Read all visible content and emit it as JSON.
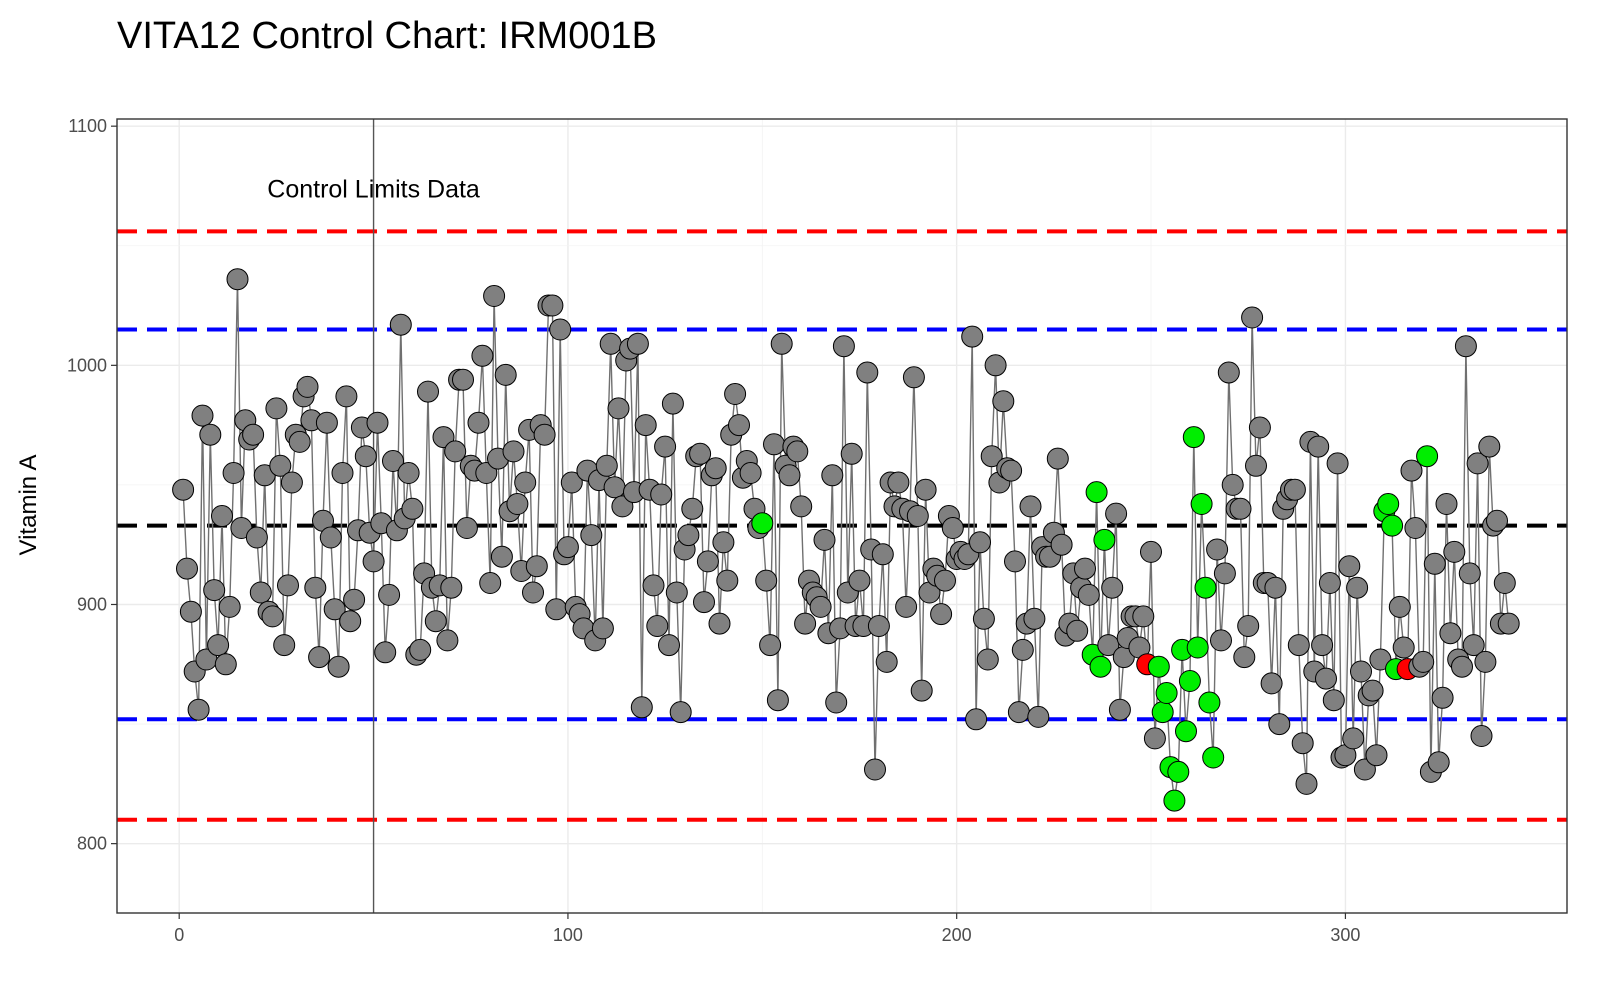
{
  "chart_data": {
    "type": "scatter",
    "title": "VITA12  Control Chart:  IRM001B",
    "xlabel": "",
    "ylabel": "Vitamin A",
    "xlim": [
      -16,
      357
    ],
    "ylim": [
      771,
      1103
    ],
    "xticks": [
      0,
      100,
      200,
      300
    ],
    "yticks": [
      800,
      900,
      1000,
      1100
    ],
    "grid": true,
    "legend": "none",
    "connect_points": true,
    "annotation": "Control Limits Data",
    "control_limit_x": 50,
    "reference_lines": [
      {
        "role": "upper-action",
        "value": 1056,
        "color": "#ff0000"
      },
      {
        "role": "upper-warning",
        "value": 1015,
        "color": "#0000ff"
      },
      {
        "role": "mean",
        "value": 933,
        "color": "#000000"
      },
      {
        "role": "lower-warning",
        "value": 852,
        "color": "#0000ff"
      },
      {
        "role": "lower-action",
        "value": 810,
        "color": "#ff0000"
      }
    ],
    "status_colors": {
      "in_control": "#808080",
      "flagged": "#00ee00",
      "out_of_control": "#ff0000"
    },
    "y": [
      948,
      915,
      897,
      872,
      856,
      979,
      877,
      971,
      906,
      883,
      937,
      875,
      899,
      955,
      1036,
      932,
      977,
      969,
      971,
      928,
      905,
      954,
      897,
      895,
      982,
      958,
      883,
      908,
      951,
      971,
      968,
      987,
      991,
      977,
      907,
      878,
      935,
      976,
      928,
      898,
      874,
      955,
      987,
      893,
      902,
      931,
      974,
      962,
      930,
      918,
      976,
      934,
      880,
      904,
      960,
      931,
      1017,
      936,
      955,
      940,
      879,
      881,
      913,
      989,
      907,
      893,
      908,
      970,
      885,
      907,
      964,
      994,
      994,
      932,
      958,
      956,
      976,
      1004,
      955,
      909,
      1029,
      961,
      920,
      996,
      939,
      964,
      942,
      914,
      951,
      973,
      905,
      916,
      975,
      971,
      1025,
      1025,
      898,
      1015,
      921,
      924,
      951,
      899,
      896,
      890,
      956,
      929,
      885,
      952,
      890,
      958,
      1009,
      949,
      982,
      941,
      1002,
      1007,
      947,
      1009,
      857,
      975,
      948,
      908,
      891,
      946,
      966,
      883,
      984,
      905,
      855,
      923,
      929,
      940,
      962,
      963,
      901,
      918,
      954,
      957,
      892,
      926,
      910,
      971,
      988,
      975,
      953,
      960,
      955,
      940,
      932,
      934,
      910,
      883,
      967,
      860,
      1009,
      958,
      954,
      966,
      964,
      941,
      892,
      910,
      905,
      903,
      899,
      927,
      888,
      954,
      859,
      890,
      1008,
      905,
      963,
      891,
      910,
      891,
      997,
      923,
      831,
      891,
      921,
      876,
      951,
      941,
      951,
      940,
      899,
      939,
      995,
      937,
      864,
      948,
      905,
      915,
      912,
      896,
      910,
      937,
      932,
      919,
      922,
      919,
      921,
      1012,
      852,
      926,
      894,
      877,
      962,
      1000,
      951,
      985,
      957,
      956,
      918,
      855,
      881,
      892,
      941,
      894,
      853,
      924,
      920,
      920,
      930,
      961,
      925,
      887,
      892,
      913,
      889,
      907,
      915,
      904,
      879,
      947,
      874,
      927,
      883,
      907,
      938,
      856,
      878,
      886,
      895,
      895,
      882,
      895,
      875,
      922,
      844,
      874,
      855,
      863,
      832,
      818,
      830,
      881,
      847,
      868,
      970,
      882,
      942,
      907,
      859,
      836,
      923,
      885,
      913,
      997,
      950,
      940,
      940,
      878,
      891,
      1020,
      958,
      974,
      909,
      909,
      867,
      907,
      850,
      940,
      944,
      948,
      948,
      883,
      842,
      825,
      968,
      872,
      966,
      883,
      869,
      909,
      860,
      959,
      836,
      837,
      916,
      844,
      907,
      872,
      831,
      862,
      864,
      837,
      877,
      939,
      942,
      933,
      873,
      899,
      882,
      873,
      956,
      932,
      874,
      876,
      962,
      830,
      917,
      834,
      861,
      942,
      888,
      922,
      877,
      874,
      1008,
      913,
      883,
      959,
      845,
      876,
      966,
      933,
      935,
      892,
      909,
      892
    ],
    "status": {
      "green": [
        150,
        235,
        236,
        237,
        238,
        252,
        253,
        254,
        255,
        256,
        257,
        258,
        259,
        260,
        261,
        262,
        263,
        264,
        265,
        266,
        310,
        311,
        312,
        313,
        321
      ],
      "red": [
        249,
        316
      ]
    }
  }
}
